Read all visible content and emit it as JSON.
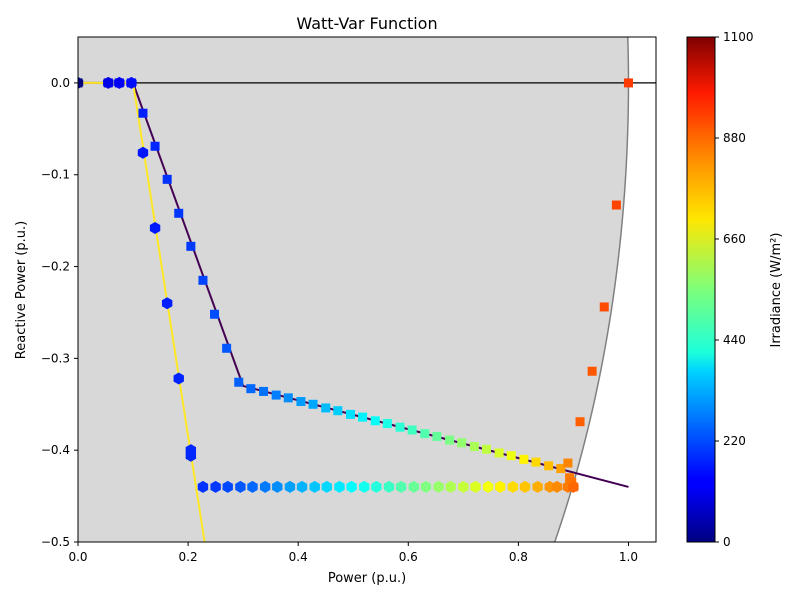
{
  "chart_data": {
    "type": "scatter",
    "title": "Watt-Var Function",
    "xlabel": "Power (p.u.)",
    "ylabel": "Reactive Power (p.u.)",
    "xlim": [
      0,
      1.05
    ],
    "ylim": [
      -0.5,
      0.05
    ],
    "x_ticks": [
      0.0,
      0.2,
      0.4,
      0.6,
      0.8,
      1.0
    ],
    "x_tick_labels": [
      "0.0",
      "0.2",
      "0.4",
      "0.6",
      "0.8",
      "1.0"
    ],
    "y_ticks": [
      0.0,
      -0.1,
      -0.2,
      -0.3,
      -0.4,
      -0.5
    ],
    "y_tick_labels": [
      "0.0",
      "−0.1",
      "−0.2",
      "−0.3",
      "−0.4",
      "−0.5"
    ],
    "grid": false,
    "background_region": {
      "description": "capability circle",
      "radius": 1.0,
      "fill": "#d8d8d8",
      "edge": "#808080"
    },
    "zero_line": 0.0,
    "colorbar": {
      "label": "Irradiance (W/m²)",
      "range": [
        0,
        1100
      ],
      "ticks": [
        0,
        220,
        440,
        660,
        880,
        1100
      ],
      "tick_labels": [
        "0",
        "220",
        "440",
        "660",
        "880",
        "1100"
      ],
      "colormap": "jet"
    },
    "curves": [
      {
        "color": "#440154",
        "x": [
          0,
          0.1,
          0.3,
          1.0
        ],
        "y": [
          0,
          0,
          -0.33,
          -0.44
        ]
      },
      {
        "color": "#fde725",
        "x": [
          0,
          0.1,
          0.23
        ],
        "y": [
          0,
          0,
          -0.5
        ]
      }
    ],
    "series": [
      {
        "marker": "square",
        "points": [
          [
            0,
            0,
            0
          ],
          [
            0.055,
            0,
            110
          ],
          [
            0.075,
            0,
            130
          ],
          [
            0.097,
            0,
            150
          ],
          [
            0.118,
            -0.033,
            170
          ],
          [
            0.14,
            -0.069,
            180
          ],
          [
            0.162,
            -0.105,
            190
          ],
          [
            0.183,
            -0.142,
            195
          ],
          [
            0.205,
            -0.178,
            200
          ],
          [
            0.227,
            -0.215,
            210
          ],
          [
            0.248,
            -0.252,
            220
          ],
          [
            0.27,
            -0.289,
            230
          ],
          [
            0.292,
            -0.326,
            240
          ],
          [
            0.314,
            -0.333,
            250
          ],
          [
            0.337,
            -0.336,
            260
          ],
          [
            0.36,
            -0.34,
            275
          ],
          [
            0.382,
            -0.343,
            290
          ],
          [
            0.405,
            -0.347,
            305
          ],
          [
            0.427,
            -0.35,
            320
          ],
          [
            0.45,
            -0.354,
            340
          ],
          [
            0.472,
            -0.357,
            360
          ],
          [
            0.495,
            -0.361,
            380
          ],
          [
            0.517,
            -0.364,
            400
          ],
          [
            0.54,
            -0.368,
            420
          ],
          [
            0.562,
            -0.371,
            440
          ],
          [
            0.585,
            -0.375,
            460
          ],
          [
            0.607,
            -0.378,
            480
          ],
          [
            0.63,
            -0.382,
            500
          ],
          [
            0.652,
            -0.385,
            520
          ],
          [
            0.675,
            -0.389,
            545
          ],
          [
            0.697,
            -0.392,
            570
          ],
          [
            0.72,
            -0.396,
            595
          ],
          [
            0.742,
            -0.399,
            620
          ],
          [
            0.765,
            -0.403,
            645
          ],
          [
            0.787,
            -0.406,
            670
          ],
          [
            0.81,
            -0.41,
            700
          ],
          [
            0.832,
            -0.413,
            730
          ],
          [
            0.855,
            -0.417,
            760
          ],
          [
            0.877,
            -0.42,
            790
          ],
          [
            0.89,
            -0.414,
            820
          ],
          [
            0.893,
            -0.43,
            830
          ],
          [
            0.897,
            -0.435,
            840
          ],
          [
            0.9,
            -0.44,
            850
          ],
          [
            0.912,
            -0.369,
            860
          ],
          [
            0.934,
            -0.314,
            870
          ],
          [
            0.956,
            -0.244,
            880
          ],
          [
            0.978,
            -0.133,
            890
          ],
          [
            1.0,
            0,
            900
          ]
        ]
      },
      {
        "marker": "hexagon",
        "points": [
          [
            0,
            0,
            0
          ],
          [
            0.055,
            0,
            110
          ],
          [
            0.075,
            0,
            130
          ],
          [
            0.097,
            0,
            150
          ],
          [
            0.118,
            -0.076,
            160
          ],
          [
            0.14,
            -0.158,
            165
          ],
          [
            0.162,
            -0.24,
            170
          ],
          [
            0.183,
            -0.322,
            175
          ],
          [
            0.205,
            -0.4,
            180
          ],
          [
            0.205,
            -0.406,
            180
          ],
          [
            0.227,
            -0.44,
            190
          ],
          [
            0.25,
            -0.44,
            200
          ],
          [
            0.272,
            -0.44,
            215
          ],
          [
            0.295,
            -0.44,
            230
          ],
          [
            0.317,
            -0.44,
            250
          ],
          [
            0.34,
            -0.44,
            270
          ],
          [
            0.362,
            -0.44,
            290
          ],
          [
            0.385,
            -0.44,
            310
          ],
          [
            0.407,
            -0.44,
            330
          ],
          [
            0.43,
            -0.44,
            350
          ],
          [
            0.452,
            -0.44,
            370
          ],
          [
            0.475,
            -0.44,
            390
          ],
          [
            0.497,
            -0.44,
            410
          ],
          [
            0.52,
            -0.44,
            430
          ],
          [
            0.542,
            -0.44,
            450
          ],
          [
            0.565,
            -0.44,
            475
          ],
          [
            0.587,
            -0.44,
            500
          ],
          [
            0.61,
            -0.44,
            525
          ],
          [
            0.632,
            -0.44,
            550
          ],
          [
            0.655,
            -0.44,
            575
          ],
          [
            0.677,
            -0.44,
            600
          ],
          [
            0.7,
            -0.44,
            625
          ],
          [
            0.722,
            -0.44,
            650
          ],
          [
            0.745,
            -0.44,
            675
          ],
          [
            0.767,
            -0.44,
            700
          ],
          [
            0.79,
            -0.44,
            725
          ],
          [
            0.812,
            -0.44,
            750
          ],
          [
            0.835,
            -0.44,
            775
          ],
          [
            0.857,
            -0.44,
            800
          ],
          [
            0.87,
            -0.44,
            815
          ],
          [
            0.89,
            -0.44,
            830
          ],
          [
            0.9,
            -0.44,
            850
          ]
        ]
      }
    ]
  }
}
